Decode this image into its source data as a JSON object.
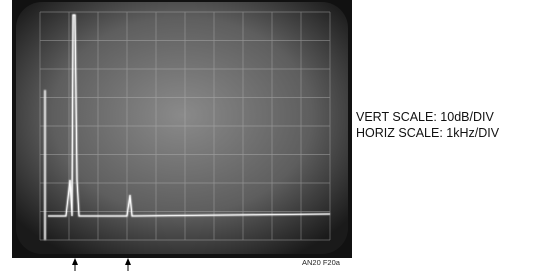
{
  "annotations": {
    "vert_scale": "VERT SCALE: 10dB/DIV",
    "horiz_scale": "HORIZ SCALE: 1kHz/DIV"
  },
  "figure_id": "AN20 F20a"
}
